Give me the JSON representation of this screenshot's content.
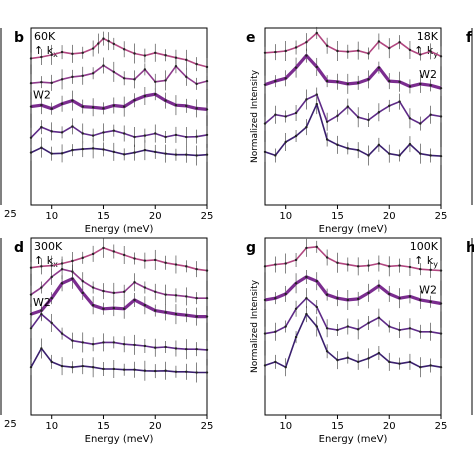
{
  "figure": {
    "shared_xlabel": "Energy (meV)",
    "shared_ylabel": "Normalized Intensity",
    "cut_panel_letters": [
      "f",
      "h"
    ],
    "cut_tick_label": "25"
  },
  "chart_data": [
    {
      "id": "b",
      "type": "line",
      "panel_letter": "b",
      "annotation": "60K\n↑ kx",
      "temperature": "60K",
      "direction_label": "↑ k",
      "direction_sub": "x",
      "inline_label": "W2",
      "inline_label_series": 2,
      "xlabel": "Energy (meV)",
      "ylabel": "Normalized Intensity",
      "xlim": [
        8,
        25
      ],
      "xticks": [
        10,
        15,
        20,
        25
      ],
      "ylim": [
        0,
        5
      ],
      "yticks_shown": false,
      "grid": false,
      "series": [
        {
          "color": "#b0457f",
          "thick": false,
          "x": [
            8,
            9,
            10,
            11,
            12,
            13,
            14,
            14.5,
            15,
            15.5,
            16,
            17,
            18,
            19,
            20,
            21,
            22,
            23,
            24,
            25
          ],
          "y": [
            4.14,
            4.18,
            4.24,
            4.32,
            4.27,
            4.3,
            4.42,
            4.56,
            4.7,
            4.63,
            4.55,
            4.4,
            4.28,
            4.22,
            4.3,
            4.23,
            4.16,
            4.1,
            3.98,
            3.9
          ]
        },
        {
          "color": "#8d3a8b",
          "thick": false,
          "x": [
            8,
            9,
            10,
            11,
            12,
            13,
            14,
            15,
            16,
            17,
            18,
            19,
            20,
            21,
            22,
            23,
            24,
            25
          ],
          "y": [
            3.44,
            3.47,
            3.45,
            3.55,
            3.62,
            3.65,
            3.72,
            3.94,
            3.76,
            3.58,
            3.55,
            3.83,
            3.48,
            3.52,
            3.92,
            3.62,
            3.42,
            3.5
          ]
        },
        {
          "color": "#7b2c8f",
          "thick": true,
          "x": [
            8,
            9,
            10,
            11,
            12,
            13,
            14,
            15,
            16,
            17,
            18,
            19,
            20,
            21,
            22,
            23,
            24,
            25
          ],
          "y": [
            2.78,
            2.82,
            2.72,
            2.86,
            2.95,
            2.78,
            2.76,
            2.73,
            2.81,
            2.78,
            2.96,
            3.08,
            3.13,
            2.95,
            2.82,
            2.8,
            2.73,
            2.7
          ]
        },
        {
          "color": "#5e2a87",
          "thick": false,
          "x": [
            8,
            9,
            10,
            11,
            12,
            13,
            14,
            15,
            16,
            17,
            18,
            19,
            20,
            21,
            22,
            23,
            24,
            25
          ],
          "y": [
            1.9,
            2.2,
            2.08,
            2.05,
            2.22,
            2.02,
            1.96,
            2.05,
            2.1,
            2.02,
            1.92,
            1.96,
            2.02,
            1.92,
            1.98,
            1.92,
            1.93,
            1.98
          ]
        },
        {
          "color": "#3a1f6e",
          "thick": false,
          "x": [
            8,
            9,
            10,
            11,
            12,
            13,
            14,
            15,
            16,
            17,
            18,
            19,
            20,
            21,
            22,
            23,
            24,
            25
          ],
          "y": [
            1.48,
            1.62,
            1.45,
            1.46,
            1.55,
            1.58,
            1.6,
            1.57,
            1.5,
            1.43,
            1.48,
            1.55,
            1.5,
            1.45,
            1.42,
            1.42,
            1.4,
            1.42
          ]
        }
      ]
    },
    {
      "id": "e",
      "type": "line",
      "panel_letter": "e",
      "annotation": "18K\n↑ ky",
      "temperature": "18K",
      "direction_label": "↑ k",
      "direction_sub": "y",
      "inline_label": "W2",
      "inline_label_series": 1,
      "xlabel": "Energy (meV)",
      "ylabel": "Normalized Intensity",
      "xlim": [
        8,
        25
      ],
      "xticks": [
        10,
        15,
        20,
        25
      ],
      "ylim": [
        0,
        5
      ],
      "yticks_shown": false,
      "grid": false,
      "series": [
        {
          "color": "#b0457f",
          "thick": false,
          "x": [
            8,
            9,
            10,
            11,
            12,
            13,
            14,
            15,
            16,
            17,
            18,
            19,
            20,
            21,
            22,
            23,
            24,
            25
          ],
          "y": [
            4.3,
            4.32,
            4.35,
            4.45,
            4.6,
            4.86,
            4.5,
            4.35,
            4.33,
            4.36,
            4.28,
            4.62,
            4.43,
            4.6,
            4.38,
            4.25,
            4.34,
            4.2
          ]
        },
        {
          "color": "#7b2c8f",
          "thick": true,
          "x": [
            8,
            9,
            10,
            11,
            12,
            13,
            14,
            15,
            16,
            17,
            18,
            19,
            20,
            21,
            22,
            23,
            24,
            25
          ],
          "y": [
            3.4,
            3.5,
            3.58,
            3.88,
            4.22,
            3.9,
            3.5,
            3.48,
            3.42,
            3.45,
            3.55,
            3.88,
            3.5,
            3.48,
            3.35,
            3.42,
            3.38,
            3.3
          ]
        },
        {
          "color": "#5e2a87",
          "thick": false,
          "x": [
            8,
            9,
            10,
            11,
            12,
            13,
            14,
            15,
            16,
            17,
            18,
            19,
            20,
            21,
            22,
            23,
            24,
            25
          ],
          "y": [
            2.3,
            2.55,
            2.5,
            2.6,
            2.98,
            3.12,
            2.35,
            2.52,
            2.78,
            2.48,
            2.4,
            2.62,
            2.8,
            2.92,
            2.45,
            2.3,
            2.55,
            2.5
          ]
        },
        {
          "color": "#3a1f6e",
          "thick": false,
          "x": [
            8,
            9,
            10,
            11,
            12,
            13,
            14,
            15,
            16,
            17,
            18,
            19,
            20,
            21,
            22,
            23,
            24,
            25
          ],
          "y": [
            1.5,
            1.4,
            1.78,
            1.95,
            2.2,
            2.85,
            1.85,
            1.7,
            1.6,
            1.55,
            1.4,
            1.7,
            1.45,
            1.4,
            1.72,
            1.45,
            1.4,
            1.38
          ]
        }
      ]
    },
    {
      "id": "d",
      "type": "line",
      "panel_letter": "d",
      "annotation": "300K\n↑ kx",
      "temperature": "300K",
      "direction_label": "↑ k",
      "direction_sub": "x",
      "inline_label": "W2",
      "inline_label_series": 2,
      "xlabel": "Energy (meV)",
      "ylabel": "Normalized Intensity",
      "xlim": [
        8,
        25
      ],
      "xticks": [
        10,
        15,
        20,
        25
      ],
      "ylim": [
        0,
        5
      ],
      "yticks_shown": false,
      "grid": false,
      "series": [
        {
          "color": "#b0457f",
          "thick": false,
          "x": [
            8,
            9,
            10,
            11,
            12,
            13,
            14,
            15,
            16,
            17,
            18,
            19,
            20,
            21,
            22,
            23,
            24,
            25
          ],
          "y": [
            4.16,
            4.2,
            4.22,
            4.28,
            4.35,
            4.44,
            4.55,
            4.72,
            4.62,
            4.52,
            4.42,
            4.36,
            4.38,
            4.3,
            4.25,
            4.2,
            4.12,
            4.08
          ]
        },
        {
          "color": "#8d3a8b",
          "thick": false,
          "x": [
            8,
            9,
            10,
            11,
            12,
            13,
            14,
            15,
            16,
            17,
            18,
            19,
            20,
            21,
            22,
            23,
            24,
            25
          ],
          "y": [
            3.4,
            3.6,
            3.9,
            4.12,
            4.05,
            3.78,
            3.6,
            3.5,
            3.45,
            3.48,
            3.75,
            3.6,
            3.48,
            3.4,
            3.38,
            3.35,
            3.3,
            3.3
          ]
        },
        {
          "color": "#7b2c8f",
          "thick": true,
          "x": [
            8,
            9,
            10,
            11,
            12,
            13,
            14,
            15,
            16,
            17,
            18,
            19,
            20,
            21,
            22,
            23,
            24,
            25
          ],
          "y": [
            2.85,
            2.95,
            3.3,
            3.72,
            3.85,
            3.45,
            3.1,
            3.0,
            3.02,
            3.0,
            3.25,
            3.1,
            2.95,
            2.9,
            2.85,
            2.82,
            2.78,
            2.78
          ]
        },
        {
          "color": "#5e2a87",
          "thick": false,
          "x": [
            8,
            9,
            10,
            11,
            12,
            13,
            14,
            15,
            16,
            17,
            18,
            19,
            20,
            21,
            22,
            23,
            24,
            25
          ],
          "y": [
            2.45,
            2.85,
            2.6,
            2.3,
            2.1,
            2.05,
            2.0,
            2.05,
            2.05,
            2.0,
            1.98,
            1.95,
            1.9,
            1.92,
            1.88,
            1.86,
            1.86,
            1.84
          ]
        },
        {
          "color": "#3a1f6e",
          "thick": false,
          "x": [
            8,
            9,
            10,
            11,
            12,
            13,
            14,
            15,
            16,
            17,
            18,
            19,
            20,
            21,
            22,
            23,
            24,
            25
          ],
          "y": [
            1.35,
            1.88,
            1.5,
            1.38,
            1.35,
            1.38,
            1.35,
            1.3,
            1.3,
            1.28,
            1.28,
            1.25,
            1.24,
            1.25,
            1.22,
            1.22,
            1.2,
            1.2
          ]
        }
      ]
    },
    {
      "id": "g",
      "type": "line",
      "panel_letter": "g",
      "annotation": "100K\n↑ ky",
      "temperature": "100K",
      "direction_label": "↑ k",
      "direction_sub": "y",
      "inline_label": "W2",
      "inline_label_series": 1,
      "xlabel": "Energy (meV)",
      "ylabel": "Normalized Intensity",
      "xlim": [
        8,
        25
      ],
      "xticks": [
        10,
        15,
        20,
        25
      ],
      "ylim": [
        0,
        5
      ],
      "yticks_shown": false,
      "grid": false,
      "series": [
        {
          "color": "#b0457f",
          "thick": false,
          "x": [
            8,
            9,
            10,
            11,
            12,
            13,
            14,
            15,
            16,
            17,
            18,
            19,
            20,
            21,
            22,
            23,
            24,
            25
          ],
          "y": [
            4.2,
            4.25,
            4.28,
            4.38,
            4.72,
            4.75,
            4.45,
            4.3,
            4.25,
            4.2,
            4.22,
            4.28,
            4.2,
            4.22,
            4.18,
            4.12,
            4.1,
            4.08
          ]
        },
        {
          "color": "#7b2c8f",
          "thick": true,
          "x": [
            8,
            9,
            10,
            11,
            12,
            13,
            14,
            15,
            16,
            17,
            18,
            19,
            20,
            21,
            22,
            23,
            24,
            25
          ],
          "y": [
            3.25,
            3.3,
            3.42,
            3.72,
            3.9,
            3.78,
            3.4,
            3.3,
            3.25,
            3.28,
            3.45,
            3.65,
            3.42,
            3.3,
            3.35,
            3.25,
            3.2,
            3.15
          ]
        },
        {
          "color": "#5e2a87",
          "thick": false,
          "x": [
            8,
            9,
            10,
            11,
            12,
            13,
            14,
            15,
            16,
            17,
            18,
            19,
            20,
            21,
            22,
            23,
            24,
            25
          ],
          "y": [
            2.3,
            2.35,
            2.5,
            3.0,
            3.3,
            3.05,
            2.45,
            2.4,
            2.5,
            2.42,
            2.6,
            2.75,
            2.5,
            2.4,
            2.45,
            2.35,
            2.35,
            2.3
          ]
        },
        {
          "color": "#3a1f6e",
          "thick": false,
          "x": [
            8,
            9,
            10,
            11,
            12,
            13,
            14,
            15,
            16,
            17,
            18,
            19,
            20,
            21,
            22,
            23,
            24,
            25
          ],
          "y": [
            1.4,
            1.5,
            1.35,
            2.2,
            2.85,
            2.5,
            1.8,
            1.55,
            1.62,
            1.5,
            1.6,
            1.75,
            1.5,
            1.45,
            1.5,
            1.35,
            1.4,
            1.35
          ]
        }
      ]
    }
  ]
}
